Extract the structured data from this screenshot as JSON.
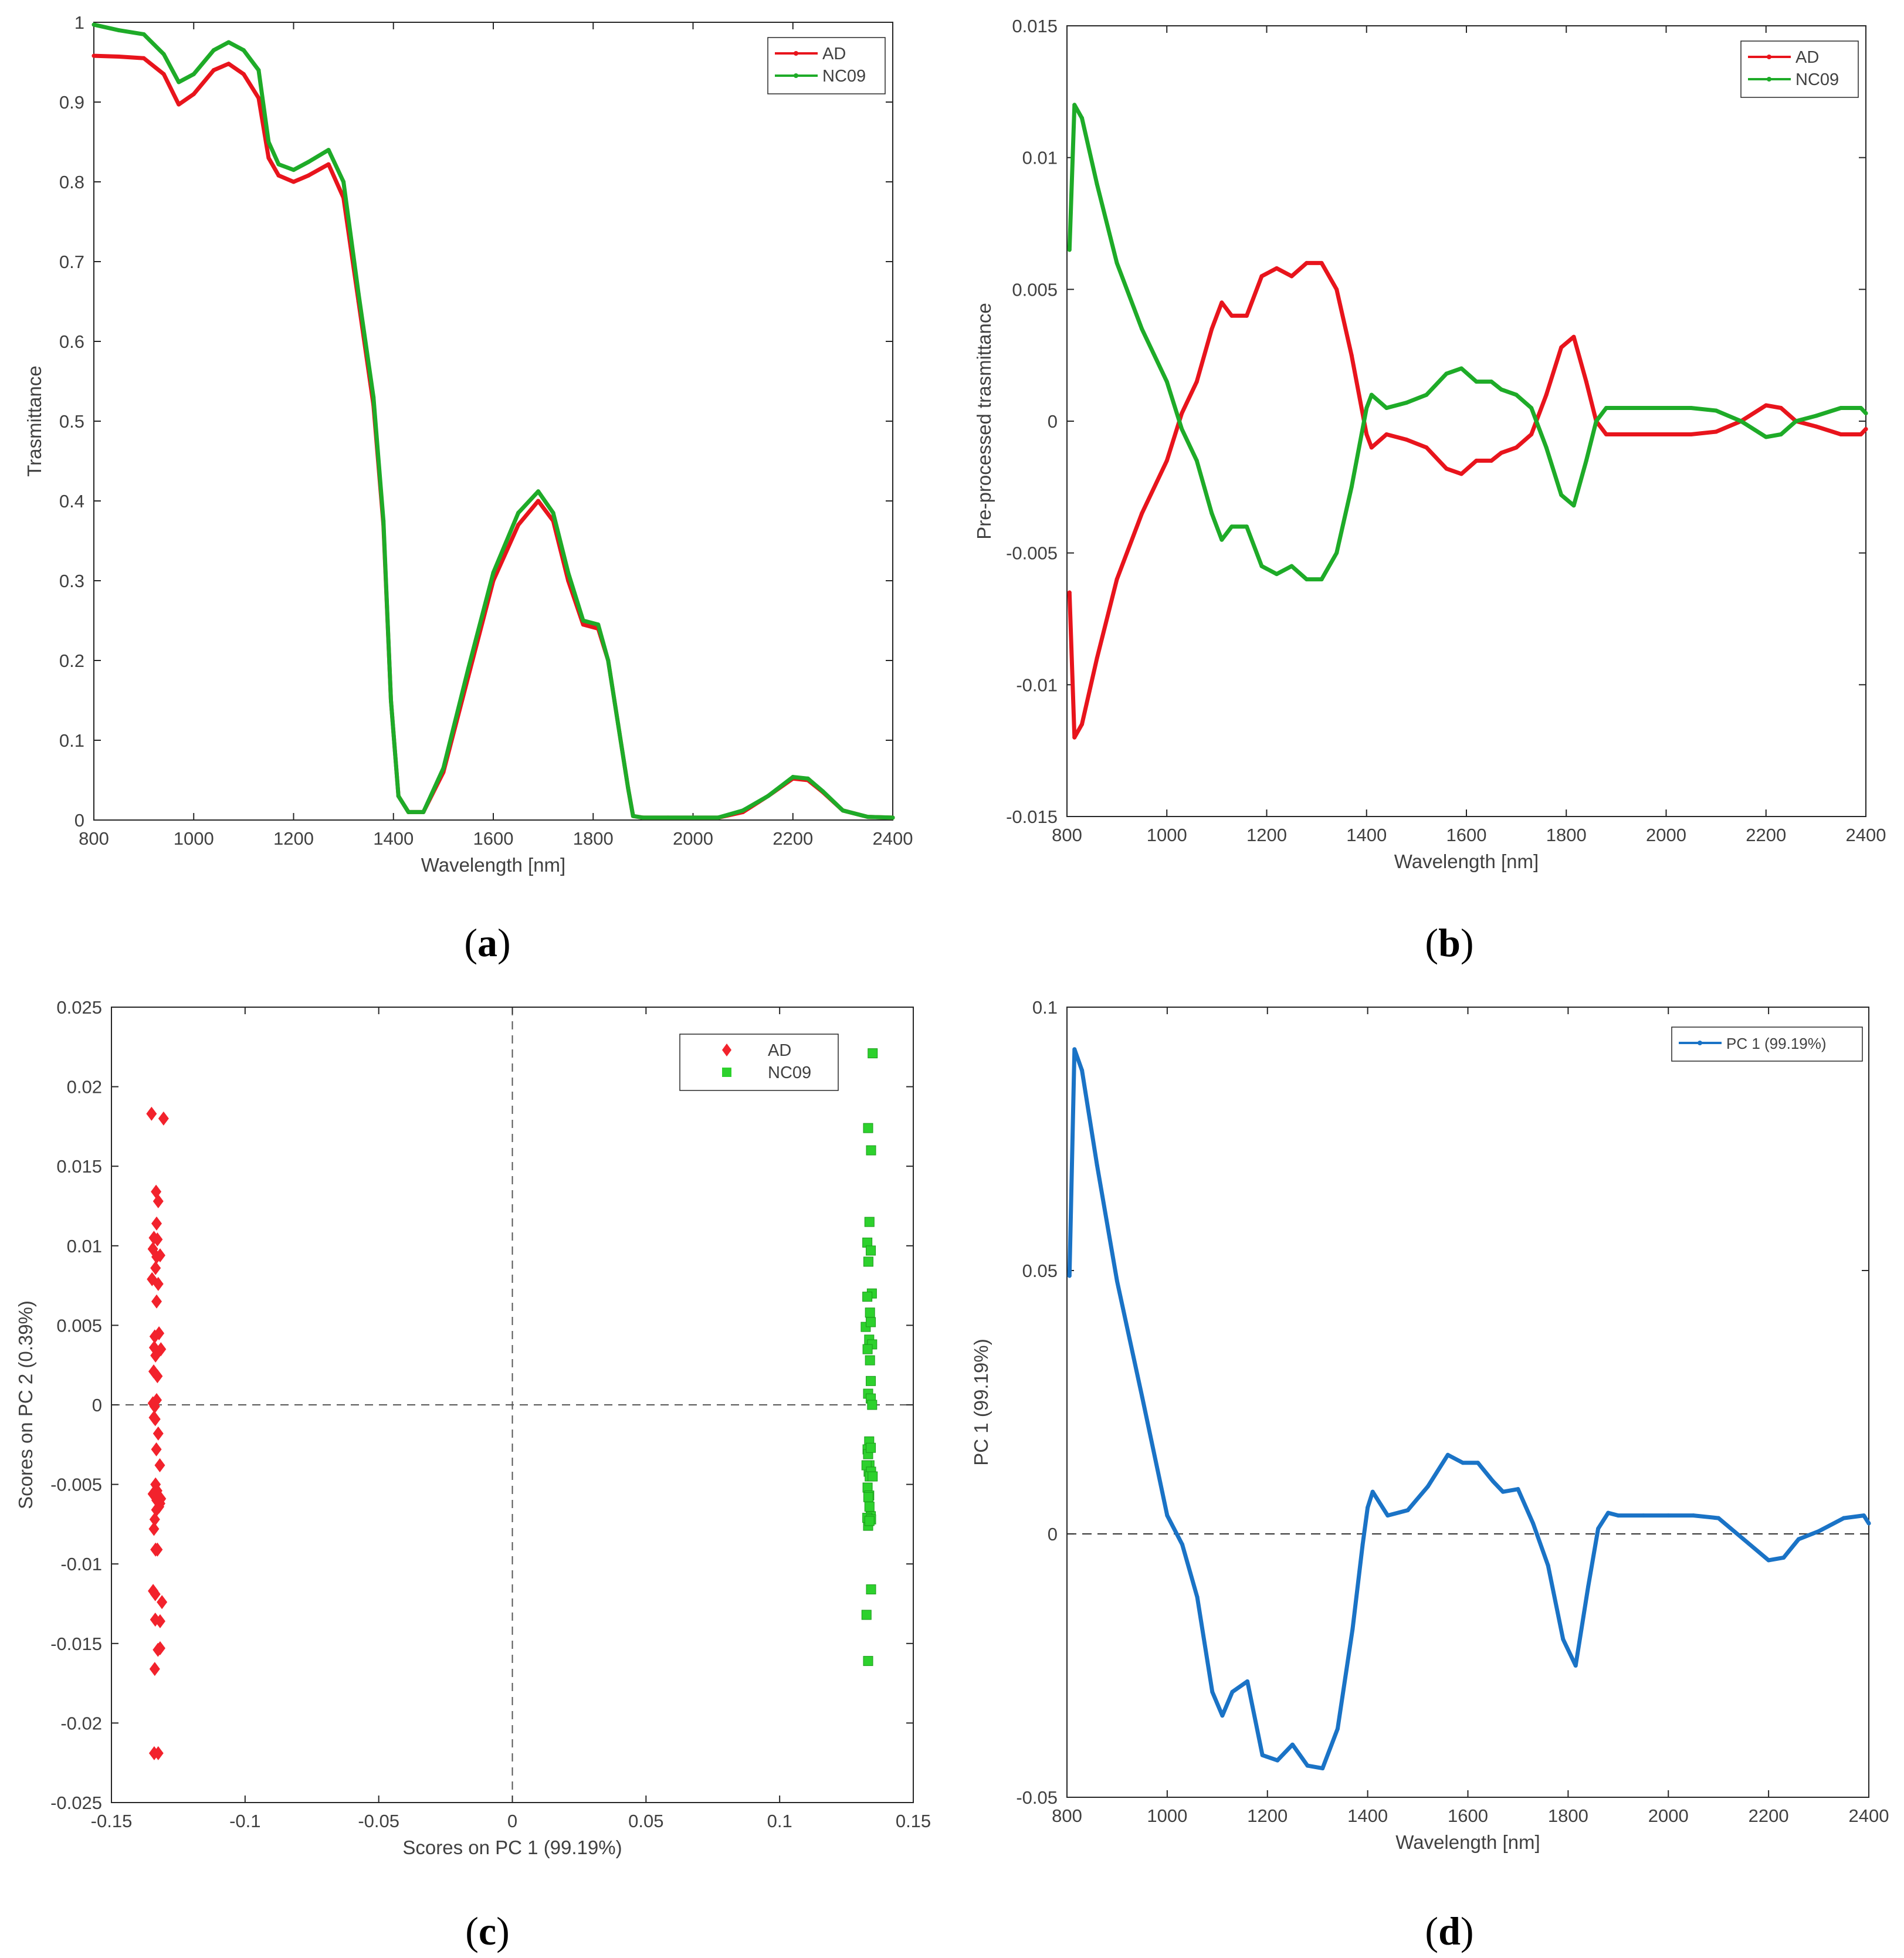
{
  "figure": {
    "panels": [
      "a",
      "b",
      "c",
      "d"
    ]
  },
  "chart_data": [
    {
      "id": "a",
      "panel_label": "a",
      "type": "line",
      "title": "",
      "xlabel": "Wavelength [nm]",
      "ylabel": "Trasmittance",
      "xlim": [
        800,
        2400
      ],
      "ylim": [
        0,
        1
      ],
      "xticks": [
        800,
        1000,
        1200,
        1400,
        1600,
        1800,
        2000,
        2200,
        2400
      ],
      "xtick_labels": [
        "800",
        "1000",
        "1200",
        "1400",
        "1600",
        "1800",
        "2000",
        "2200",
        "2400"
      ],
      "yticks": [
        0,
        0.1,
        0.2,
        0.3,
        0.4,
        0.5,
        0.6,
        0.7,
        0.8,
        0.9,
        1
      ],
      "ytick_labels": [
        "0",
        "0.1",
        "0.2",
        "0.3",
        "0.4",
        "0.5",
        "0.6",
        "0.7",
        "0.8",
        "0.9",
        "1"
      ],
      "legend": "top-right",
      "series": [
        {
          "name": "AD",
          "color": "#e8141c",
          "x": [
            800,
            850,
            900,
            940,
            970,
            1000,
            1040,
            1070,
            1100,
            1130,
            1150,
            1170,
            1200,
            1230,
            1270,
            1300,
            1330,
            1360,
            1380,
            1395,
            1410,
            1430,
            1460,
            1500,
            1550,
            1600,
            1650,
            1690,
            1720,
            1750,
            1780,
            1810,
            1830,
            1850,
            1870,
            1880,
            1900,
            1950,
            2000,
            2050,
            2100,
            2150,
            2200,
            2230,
            2260,
            2300,
            2350,
            2400
          ],
          "y": [
            0.958,
            0.957,
            0.955,
            0.935,
            0.897,
            0.91,
            0.94,
            0.948,
            0.935,
            0.905,
            0.83,
            0.808,
            0.8,
            0.808,
            0.822,
            0.78,
            0.65,
            0.52,
            0.37,
            0.15,
            0.03,
            0.01,
            0.01,
            0.06,
            0.18,
            0.3,
            0.37,
            0.4,
            0.375,
            0.3,
            0.245,
            0.24,
            0.2,
            0.12,
            0.04,
            0.005,
            0.003,
            0.003,
            0.003,
            0.003,
            0.01,
            0.03,
            0.052,
            0.05,
            0.035,
            0.012,
            0.004,
            0.003
          ]
        },
        {
          "name": "NC09",
          "color": "#1eab28",
          "x": [
            800,
            850,
            900,
            940,
            970,
            1000,
            1040,
            1070,
            1100,
            1130,
            1150,
            1170,
            1200,
            1230,
            1270,
            1300,
            1330,
            1360,
            1380,
            1395,
            1410,
            1430,
            1460,
            1500,
            1550,
            1600,
            1650,
            1690,
            1720,
            1750,
            1780,
            1810,
            1830,
            1850,
            1870,
            1880,
            1900,
            1950,
            2000,
            2050,
            2100,
            2150,
            2200,
            2230,
            2260,
            2300,
            2350,
            2400
          ],
          "y": [
            0.997,
            0.99,
            0.985,
            0.96,
            0.925,
            0.935,
            0.965,
            0.975,
            0.965,
            0.94,
            0.85,
            0.822,
            0.815,
            0.825,
            0.84,
            0.8,
            0.66,
            0.53,
            0.375,
            0.15,
            0.03,
            0.01,
            0.01,
            0.065,
            0.19,
            0.31,
            0.385,
            0.412,
            0.385,
            0.31,
            0.25,
            0.245,
            0.2,
            0.12,
            0.04,
            0.005,
            0.003,
            0.003,
            0.003,
            0.003,
            0.012,
            0.03,
            0.054,
            0.052,
            0.036,
            0.012,
            0.004,
            0.003
          ]
        }
      ]
    },
    {
      "id": "b",
      "panel_label": "b",
      "type": "line",
      "title": "",
      "xlabel": "Wavelength [nm]",
      "ylabel": "Pre-processed trasmittance",
      "xlim": [
        800,
        2400
      ],
      "ylim": [
        -0.015,
        0.015
      ],
      "xticks": [
        800,
        1000,
        1200,
        1400,
        1600,
        1800,
        2000,
        2200,
        2400
      ],
      "xtick_labels": [
        "800",
        "1000",
        "1200",
        "1400",
        "1600",
        "1800",
        "2000",
        "2200",
        "2400"
      ],
      "yticks": [
        -0.015,
        -0.01,
        -0.005,
        0,
        0.005,
        0.01,
        0.015
      ],
      "ytick_labels": [
        "-0.015",
        "-0.01",
        "-0.005",
        "0",
        "0.005",
        "0.01",
        "0.015"
      ],
      "legend": "top-right",
      "series": [
        {
          "name": "AD",
          "color": "#e8141c",
          "x": [
            805,
            815,
            830,
            860,
            900,
            950,
            1000,
            1030,
            1060,
            1090,
            1110,
            1130,
            1160,
            1190,
            1220,
            1250,
            1280,
            1310,
            1340,
            1370,
            1390,
            1400,
            1410,
            1440,
            1480,
            1520,
            1560,
            1590,
            1620,
            1650,
            1670,
            1700,
            1730,
            1760,
            1790,
            1815,
            1840,
            1860,
            1880,
            1900,
            1950,
            2000,
            2050,
            2100,
            2150,
            2200,
            2230,
            2260,
            2300,
            2350,
            2390,
            2400
          ],
          "y": [
            -0.0065,
            -0.012,
            -0.0115,
            -0.009,
            -0.006,
            -0.0035,
            -0.0015,
            0.0003,
            0.0015,
            0.0035,
            0.0045,
            0.004,
            0.004,
            0.0055,
            0.0058,
            0.0055,
            0.006,
            0.006,
            0.005,
            0.0025,
            0.0005,
            -0.0005,
            -0.001,
            -0.0005,
            -0.0007,
            -0.001,
            -0.0018,
            -0.002,
            -0.0015,
            -0.0015,
            -0.0012,
            -0.001,
            -0.0005,
            0.001,
            0.0028,
            0.0032,
            0.0015,
            0.0,
            -0.0005,
            -0.0005,
            -0.0005,
            -0.0005,
            -0.0005,
            -0.0004,
            0.0,
            0.0006,
            0.0005,
            0.0,
            -0.0002,
            -0.0005,
            -0.0005,
            -0.0003
          ]
        },
        {
          "name": "NC09",
          "color": "#1eab28",
          "x": [
            805,
            815,
            830,
            860,
            900,
            950,
            1000,
            1030,
            1060,
            1090,
            1110,
            1130,
            1160,
            1190,
            1220,
            1250,
            1280,
            1310,
            1340,
            1370,
            1390,
            1400,
            1410,
            1440,
            1480,
            1520,
            1560,
            1590,
            1620,
            1650,
            1670,
            1700,
            1730,
            1760,
            1790,
            1815,
            1840,
            1860,
            1880,
            1900,
            1950,
            2000,
            2050,
            2100,
            2150,
            2200,
            2230,
            2260,
            2300,
            2350,
            2390,
            2400
          ],
          "y": [
            0.0065,
            0.012,
            0.0115,
            0.009,
            0.006,
            0.0035,
            0.0015,
            -0.0003,
            -0.0015,
            -0.0035,
            -0.0045,
            -0.004,
            -0.004,
            -0.0055,
            -0.0058,
            -0.0055,
            -0.006,
            -0.006,
            -0.005,
            -0.0025,
            -0.0005,
            0.0005,
            0.001,
            0.0005,
            0.0007,
            0.001,
            0.0018,
            0.002,
            0.0015,
            0.0015,
            0.0012,
            0.001,
            0.0005,
            -0.001,
            -0.0028,
            -0.0032,
            -0.0015,
            0.0,
            0.0005,
            0.0005,
            0.0005,
            0.0005,
            0.0005,
            0.0004,
            0.0,
            -0.0006,
            -0.0005,
            0.0,
            0.0002,
            0.0005,
            0.0005,
            0.0003
          ]
        }
      ]
    },
    {
      "id": "c",
      "panel_label": "c",
      "type": "scatter",
      "title": "",
      "xlabel": "Scores on PC 1 (99.19%)",
      "ylabel": "Scores on PC 2 (0.39%)",
      "xlim": [
        -0.15,
        0.15
      ],
      "ylim": [
        -0.025,
        0.025
      ],
      "xticks": [
        -0.15,
        -0.1,
        -0.05,
        0,
        0.05,
        0.1,
        0.15
      ],
      "xtick_labels": [
        "-0.15",
        "-0.1",
        "-0.05",
        "0",
        "0.05",
        "0.1",
        "0.15"
      ],
      "yticks": [
        -0.025,
        -0.02,
        -0.015,
        -0.01,
        -0.005,
        0,
        0.005,
        0.01,
        0.015,
        0.02,
        0.025
      ],
      "ytick_labels": [
        "-0.025",
        "-0.02",
        "-0.015",
        "-0.01",
        "-0.005",
        "0",
        "0.005",
        "0.01",
        "0.015",
        "0.02",
        "0.025"
      ],
      "legend": "top-right",
      "series": [
        {
          "name": "AD",
          "color": "#f2222c",
          "marker": "diamond",
          "x": [
            -0.135,
            -0.1305,
            -0.1333,
            -0.1325,
            -0.1331,
            -0.1328,
            -0.1341,
            -0.1345,
            -0.1331,
            -0.1318,
            -0.1335,
            -0.1325,
            -0.1348,
            -0.1331,
            -0.1338,
            -0.1322,
            -0.134,
            -0.1315,
            -0.1342,
            -0.1335,
            -0.1328,
            -0.1345,
            -0.1338,
            -0.1331,
            -0.1336,
            -0.1325,
            -0.1341,
            -0.1332,
            -0.1319,
            -0.1335,
            -0.1329,
            -0.1315,
            -0.1345,
            -0.1331,
            -0.1338,
            -0.1322,
            -0.1332,
            -0.1318,
            -0.1341,
            -0.1335,
            -0.1328,
            -0.1344,
            -0.1311,
            -0.1336,
            -0.1318,
            -0.1326,
            -0.1336,
            -0.1318,
            -0.1338,
            -0.1325,
            -0.134
          ],
          "y": [
            0.0183,
            0.018,
            0.0134,
            0.0128,
            0.0114,
            0.0104,
            0.0105,
            0.0098,
            0.0093,
            0.0094,
            0.0086,
            0.0076,
            0.0079,
            0.0065,
            0.0043,
            0.0045,
            0.0036,
            0.0035,
            0.0021,
            0.0031,
            0.0018,
            0.0001,
            -0.0001,
            0.0003,
            -0.0009,
            -0.0018,
            -0.0008,
            -0.0028,
            -0.0038,
            -0.005,
            -0.0054,
            -0.0059,
            -0.0056,
            -0.006,
            -0.0072,
            -0.0064,
            -0.0066,
            -0.0062,
            -0.0078,
            -0.0091,
            -0.0091,
            -0.0117,
            -0.0124,
            -0.0119,
            -0.0136,
            -0.0154,
            -0.0135,
            -0.0153,
            -0.0166,
            -0.0219,
            -0.0219
          ]
        },
        {
          "name": "NC09",
          "color": "#2dd12d",
          "marker": "square",
          "x": [
            0.1348,
            0.1331,
            0.1342,
            0.1336,
            0.1328,
            0.1341,
            0.1332,
            0.1345,
            0.1328,
            0.1338,
            0.1322,
            0.1341,
            0.1335,
            0.1346,
            0.1329,
            0.1338,
            0.1341,
            0.1331,
            0.1341,
            0.1346,
            0.1335,
            0.1329,
            0.1331,
            0.1336,
            0.1341,
            0.1333,
            0.1325,
            0.1342,
            0.1337,
            0.1329,
            0.1335,
            0.1348,
            0.1332,
            0.1336,
            0.1341,
            0.1331,
            0.1328,
            0.1342,
            0.1336,
            0.1342,
            0.1325,
            0.1331
          ],
          "y": [
            0.0221,
            0.0174,
            0.016,
            0.0115,
            0.0102,
            0.0097,
            0.009,
            0.007,
            0.0068,
            0.0058,
            0.0049,
            0.0052,
            0.0041,
            0.0038,
            0.0035,
            0.0028,
            0.0015,
            0.0007,
            0.0004,
            0.0,
            -0.0023,
            -0.0028,
            -0.0031,
            -0.0038,
            -0.0027,
            -0.0042,
            -0.0038,
            -0.0042,
            -0.0045,
            -0.0052,
            -0.0057,
            -0.0045,
            -0.0058,
            -0.0064,
            -0.007,
            -0.0076,
            -0.0071,
            -0.0072,
            -0.0073,
            -0.0116,
            -0.0132,
            -0.0161
          ]
        }
      ]
    },
    {
      "id": "d",
      "panel_label": "d",
      "type": "line",
      "title": "",
      "xlabel": "Wavelength [nm]",
      "ylabel": "PC 1 (99.19%)",
      "xlim": [
        800,
        2400
      ],
      "ylim": [
        -0.05,
        0.1
      ],
      "xticks": [
        800,
        1000,
        1200,
        1400,
        1600,
        1800,
        2000,
        2200,
        2400
      ],
      "xtick_labels": [
        "800",
        "1000",
        "1200",
        "1400",
        "1600",
        "1800",
        "2000",
        "2200",
        "2400"
      ],
      "yticks": [
        -0.05,
        0,
        0.05,
        0.1
      ],
      "ytick_labels": [
        "-0.05",
        "0",
        "0.05",
        "0.1"
      ],
      "legend": "top-right",
      "series": [
        {
          "name": "PC 1 (99.19%)",
          "color": "#1a73c6",
          "x": [
            805,
            815,
            830,
            860,
            900,
            950,
            1000,
            1030,
            1060,
            1090,
            1110,
            1130,
            1160,
            1190,
            1220,
            1250,
            1280,
            1310,
            1340,
            1370,
            1390,
            1400,
            1410,
            1440,
            1480,
            1520,
            1560,
            1590,
            1620,
            1650,
            1670,
            1700,
            1730,
            1760,
            1790,
            1815,
            1840,
            1860,
            1880,
            1900,
            1950,
            2000,
            2050,
            2100,
            2150,
            2200,
            2230,
            2260,
            2300,
            2350,
            2390,
            2400
          ],
          "y": [
            0.049,
            0.092,
            0.088,
            0.07,
            0.048,
            0.026,
            0.0035,
            -0.002,
            -0.012,
            -0.03,
            -0.0345,
            -0.03,
            -0.028,
            -0.042,
            -0.043,
            -0.04,
            -0.044,
            -0.0445,
            -0.037,
            -0.018,
            -0.002,
            0.005,
            0.008,
            0.0035,
            0.0045,
            0.009,
            0.015,
            0.0135,
            0.0135,
            0.01,
            0.008,
            0.0085,
            0.002,
            -0.006,
            -0.02,
            -0.025,
            -0.01,
            0.001,
            0.004,
            0.0035,
            0.0035,
            0.0035,
            0.0035,
            0.003,
            -0.001,
            -0.005,
            -0.0045,
            -0.001,
            0.0005,
            0.003,
            0.0035,
            0.002
          ]
        }
      ]
    }
  ]
}
